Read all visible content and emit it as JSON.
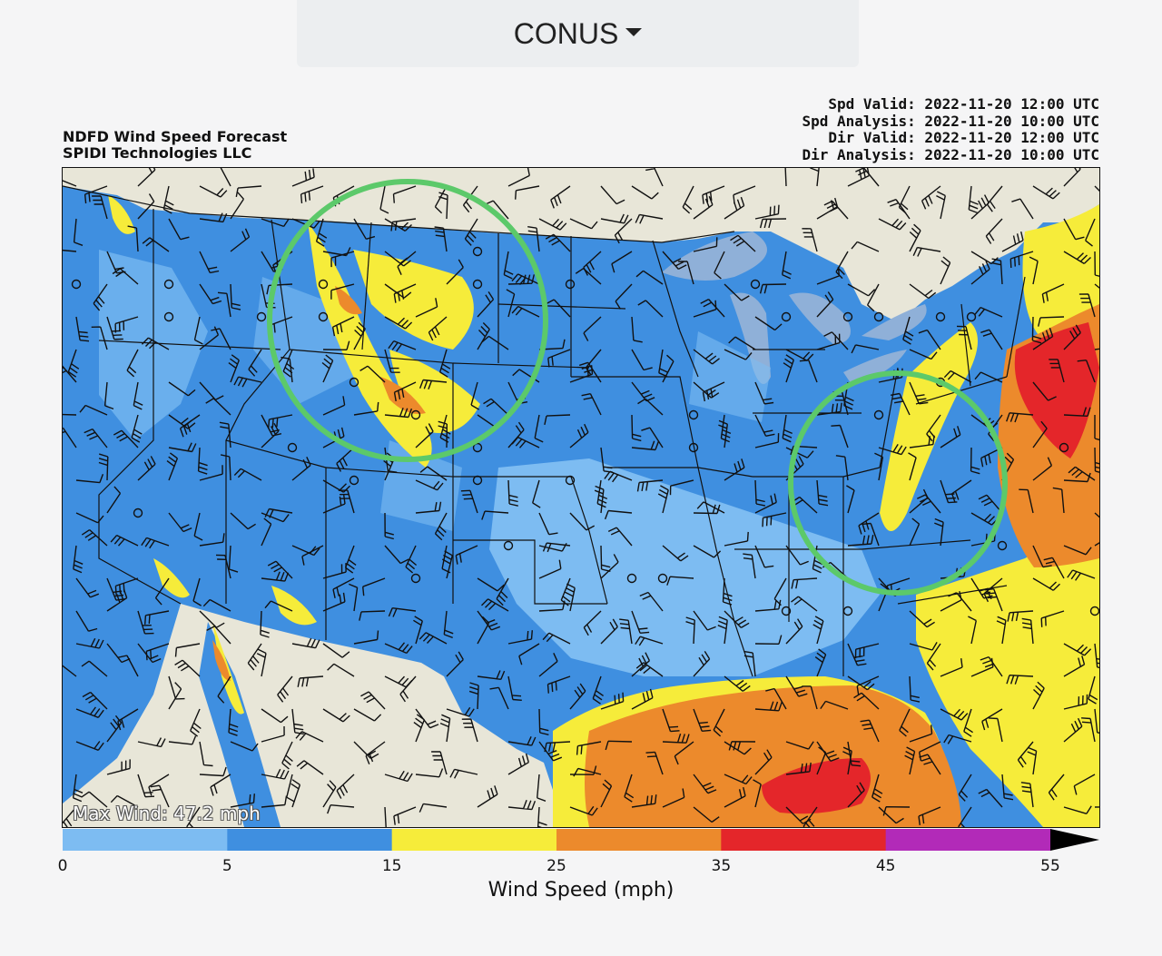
{
  "region_selector": {
    "label": "CONUS",
    "icon": "caret-down-icon"
  },
  "titles": {
    "left_line1": "NDFD Wind Speed Forecast",
    "left_line2": "SPIDI Technologies LLC",
    "spd_valid": "Spd Valid: 2022-11-20 12:00 UTC",
    "spd_analysis": "Spd Analysis: 2022-11-20 10:00 UTC",
    "dir_valid": "Dir Valid: 2022-11-20 12:00 UTC",
    "dir_analysis": "Dir Analysis: 2022-11-20 10:00 UTC"
  },
  "map": {
    "max_wind": "Max Wind: 47.2 mph",
    "colors": {
      "land_bg": "#e8e6d8",
      "water": "#8fb0d8",
      "speed_0_5": "#7dbcf2",
      "speed_5_15": "#3f8fe0",
      "speed_15_25": "#f6ec3a",
      "speed_25_35": "#ec8a2c",
      "speed_35_45": "#e4262a",
      "speed_45_55": "#b22ab8",
      "highlight_circle": "#5cc96a"
    },
    "annotations": [
      "green-circle-northern-plains",
      "green-circle-mid-atlantic"
    ]
  },
  "colorbar": {
    "bins": [
      {
        "from": 0,
        "to": 5,
        "color": "#7dbcf2"
      },
      {
        "from": 5,
        "to": 15,
        "color": "#3f8fe0"
      },
      {
        "from": 15,
        "to": 25,
        "color": "#f6ec3a"
      },
      {
        "from": 25,
        "to": 35,
        "color": "#ec8a2c"
      },
      {
        "from": 35,
        "to": 45,
        "color": "#e4262a"
      },
      {
        "from": 45,
        "to": 55,
        "color": "#b22ab8"
      }
    ],
    "ticks": [
      "0",
      "5",
      "15",
      "25",
      "35",
      "45",
      "55"
    ],
    "label": "Wind Speed (mph)"
  }
}
